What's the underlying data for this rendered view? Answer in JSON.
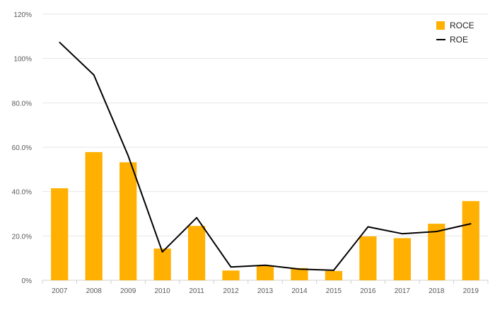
{
  "chart_data": {
    "type": "bar",
    "categories": [
      "2007",
      "2008",
      "2009",
      "2010",
      "2011",
      "2012",
      "2013",
      "2014",
      "2015",
      "2016",
      "2017",
      "2018",
      "2019"
    ],
    "series": [
      {
        "name": "ROCE",
        "type": "bar",
        "color": "#FFB000",
        "values": [
          41.5,
          57.8,
          53.2,
          14.3,
          24.5,
          4.4,
          6.4,
          5.5,
          4.2,
          19.8,
          19.0,
          25.5,
          35.7
        ]
      },
      {
        "name": "ROE",
        "type": "line",
        "color": "#000000",
        "values": [
          107.3,
          92.6,
          56.2,
          12.8,
          28.2,
          6.0,
          6.8,
          5.0,
          4.5,
          24.1,
          21.0,
          22.0,
          25.5
        ]
      }
    ],
    "ylim": [
      0,
      120
    ],
    "yticks": [
      {
        "value": 0,
        "label": "0%"
      },
      {
        "value": 20,
        "label": "20.0%"
      },
      {
        "value": 40,
        "label": "40.0%"
      },
      {
        "value": 60,
        "label": "60.0%"
      },
      {
        "value": 80,
        "label": "80.0%"
      },
      {
        "value": 100,
        "label": "100%"
      },
      {
        "value": 120,
        "label": "120%"
      }
    ],
    "grid": true,
    "legend_position": "top-right",
    "title": "",
    "xlabel": "",
    "ylabel": ""
  }
}
